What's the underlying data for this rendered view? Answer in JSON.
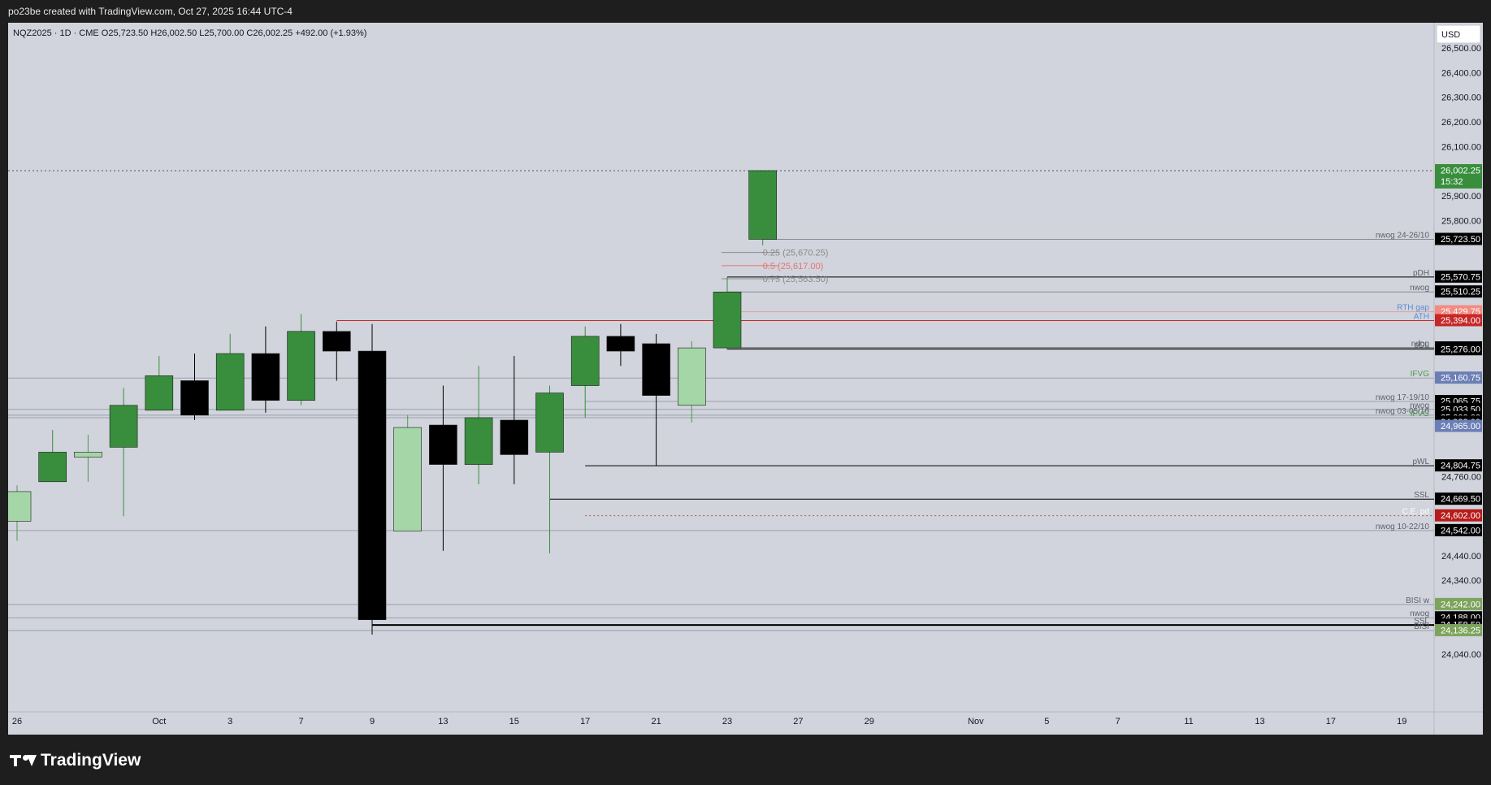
{
  "header": {
    "created_by": "po23be created with TradingView.com, Oct 27, 2025 16:44 UTC-4"
  },
  "chart_data": {
    "type": "candlestick",
    "symbol_info": "NQZ2025 · 1D · CME  O25,723.50  H26,002.50  L25,700.00  C26,002.25  +492.00 (+1.93%)",
    "currency_label": "USD",
    "y_ticks": [
      {
        "value": 26500,
        "label": "26,500.00"
      },
      {
        "value": 26400,
        "label": "26,400.00"
      },
      {
        "value": 26300,
        "label": "26,300.00"
      },
      {
        "value": 26200,
        "label": "26,200.00"
      },
      {
        "value": 26100,
        "label": "26,100.00"
      },
      {
        "value": 25900,
        "label": "25,900.00"
      },
      {
        "value": 25800,
        "label": "25,800.00"
      },
      {
        "value": 24760,
        "label": "24,760.00"
      },
      {
        "value": 24440,
        "label": "24,440.00"
      },
      {
        "value": 24340,
        "label": "24,340.00"
      },
      {
        "value": 24040,
        "label": "24,040.00"
      }
    ],
    "x_ticks": [
      {
        "index": 0,
        "label": "26"
      },
      {
        "index": 4,
        "label": "Oct"
      },
      {
        "index": 6,
        "label": "3"
      },
      {
        "index": 8,
        "label": "7"
      },
      {
        "index": 10,
        "label": "9"
      },
      {
        "index": 12,
        "label": "13"
      },
      {
        "index": 14,
        "label": "15"
      },
      {
        "index": 16,
        "label": "17"
      },
      {
        "index": 18,
        "label": "21"
      },
      {
        "index": 20,
        "label": "23"
      },
      {
        "index": 22,
        "label": "27"
      },
      {
        "index": 24,
        "label": "29"
      },
      {
        "index": 27,
        "label": "Nov"
      },
      {
        "index": 29,
        "label": "5"
      },
      {
        "index": 31,
        "label": "7"
      },
      {
        "index": 33,
        "label": "11"
      },
      {
        "index": 35,
        "label": "13"
      },
      {
        "index": 37,
        "label": "17"
      },
      {
        "index": 39,
        "label": "19"
      }
    ],
    "candles": [
      {
        "index": 0,
        "open": 24580,
        "high": 24725,
        "low": 24500,
        "close": 24700,
        "color": "#a5d6a7"
      },
      {
        "index": 1,
        "open": 24740,
        "high": 24950,
        "low": 24740,
        "close": 24860,
        "color": "#388e3c"
      },
      {
        "index": 2,
        "open": 24840,
        "high": 24930,
        "low": 24740,
        "close": 24860,
        "color": "#a5d6a7"
      },
      {
        "index": 3,
        "open": 24880,
        "high": 25120,
        "low": 24600,
        "close": 25050,
        "color": "#388e3c"
      },
      {
        "index": 4,
        "open": 25030,
        "high": 25250,
        "low": 25030,
        "close": 25170,
        "color": "#388e3c"
      },
      {
        "index": 5,
        "open": 25150,
        "high": 25260,
        "low": 24990,
        "close": 25010,
        "color": "#000000"
      },
      {
        "index": 6,
        "open": 25030,
        "high": 25340,
        "low": 25030,
        "close": 25260,
        "color": "#388e3c"
      },
      {
        "index": 7,
        "open": 25260,
        "high": 25370,
        "low": 25020,
        "close": 25070,
        "color": "#000000"
      },
      {
        "index": 8,
        "open": 25070,
        "high": 25420,
        "low": 25050,
        "close": 25350,
        "color": "#388e3c"
      },
      {
        "index": 9,
        "open": 25350,
        "high": 25390,
        "low": 25150,
        "close": 25270,
        "color": "#000000"
      },
      {
        "index": 10,
        "open": 25270,
        "high": 25380,
        "low": 24120,
        "close": 24180,
        "color": "#000000"
      },
      {
        "index": 11,
        "open": 24540,
        "high": 25010,
        "low": 24540,
        "close": 24960,
        "color": "#a5d6a7"
      },
      {
        "index": 12,
        "open": 24970,
        "high": 25130,
        "low": 24460,
        "close": 24810,
        "color": "#000000"
      },
      {
        "index": 13,
        "open": 24810,
        "high": 25210,
        "low": 24730,
        "close": 25000,
        "color": "#388e3c"
      },
      {
        "index": 14,
        "open": 24990,
        "high": 25250,
        "low": 24730,
        "close": 24850,
        "color": "#000000"
      },
      {
        "index": 15,
        "open": 24860,
        "high": 25130,
        "low": 24450,
        "close": 25100,
        "color": "#388e3c"
      },
      {
        "index": 16,
        "open": 25130,
        "high": 25370,
        "low": 25000,
        "close": 25330,
        "color": "#388e3c"
      },
      {
        "index": 17,
        "open": 25330,
        "high": 25380,
        "low": 25210,
        "close": 25270,
        "color": "#000000"
      },
      {
        "index": 18,
        "open": 25300,
        "high": 25340,
        "low": 24805,
        "close": 25090,
        "color": "#000000"
      },
      {
        "index": 19,
        "open": 25050,
        "high": 25310,
        "low": 24980,
        "close": 25283,
        "color": "#a5d6a7"
      },
      {
        "index": 20,
        "open": 25283,
        "high": 25570,
        "low": 25275,
        "close": 25510,
        "color": "#388e3c"
      },
      {
        "index": 21,
        "open": 25723.5,
        "high": 26002.5,
        "low": 25700,
        "close": 26002.25,
        "color": "#388e3c"
      }
    ],
    "levels": [
      {
        "value": 26002.25,
        "label": "",
        "tag": "26,002.25",
        "tag2": "15:32",
        "tag_bg": "#388e3c",
        "tag_fg": "#ffffff",
        "line": "#555555",
        "dash": "2,3",
        "from": 0
      },
      {
        "value": 25723.5,
        "label": "nwog 24-26/10",
        "tag": "25,723.50",
        "tag_bg": "#000000",
        "tag_fg": "#ffffff",
        "line": "#8a8a8a",
        "from": 21
      },
      {
        "value": 25570.75,
        "label": "pDH",
        "tag": "25,570.75",
        "tag_bg": "#000000",
        "tag_fg": "#ffffff",
        "line": "#000000",
        "from": 20
      },
      {
        "value": 25510.25,
        "label": "nwog",
        "tag": "25,510.25",
        "tag_bg": "#000000",
        "tag_fg": "#ffffff",
        "line": "#8a8a8a",
        "from": 20
      },
      {
        "value": 25429.75,
        "label": "RTH gap",
        "tag": "25,429.75",
        "tag_bg": "#f28b82",
        "tag_fg": "#ffffff",
        "line": "#e0a0a0",
        "from": 20,
        "label_color": "#5b8bd8"
      },
      {
        "value": 25394,
        "label": "ATH",
        "tag": "25,394.00",
        "tag_bg": "#c62828",
        "tag_fg": "#ffffff",
        "line": "#c62828",
        "from": 9,
        "label_color": "#5b8bd8"
      },
      {
        "value": 25283.25,
        "label": "ndog",
        "tag": "25,283.25",
        "tag_bg": "#000000",
        "tag_fg": "#ffffff",
        "line": "#444444",
        "from": 20
      },
      {
        "value": 25278,
        "label": "pDL",
        "tag": "25,278.00",
        "tag_bg": "#000000",
        "tag_fg": "#ffffff",
        "line": "#000000",
        "from": 20
      },
      {
        "value": 25276,
        "label": "",
        "tag": "25,276.00",
        "tag_bg": "#000000",
        "tag_fg": "#ffffff",
        "line": "",
        "from": 20
      },
      {
        "value": 25160.75,
        "label": "IFVG",
        "tag": "25,160.75",
        "tag_bg": "#6b7fb5",
        "tag_fg": "#ffffff",
        "line": "#9aa0ab",
        "from": 0,
        "label_color": "#4f9a4f"
      },
      {
        "value": 25065.75,
        "label": "nwog 17-19/10",
        "tag": "25,065.75",
        "tag_bg": "#000000",
        "tag_fg": "#ffffff",
        "line": "#9aa0ab",
        "from": 16
      },
      {
        "value": 25033.5,
        "label": "nwog",
        "tag": "25,033.50",
        "tag_bg": "#000000",
        "tag_fg": "#ffffff",
        "line": "#9aa0ab",
        "from": 0
      },
      {
        "value": 25010,
        "label": "nwog 03-05/10",
        "tag": "",
        "line": "#9aa0ab",
        "from": 0
      },
      {
        "value": 25000,
        "label": "IFVG",
        "tag": "25,000.00",
        "tag_bg": "#000000",
        "tag_fg": "#ffffff",
        "line": "#9aa0ab",
        "from": 0,
        "label_color": "#4f9a4f"
      },
      {
        "value": 24982,
        "label": "",
        "tag": "24,982.00",
        "tag_bg": "#000000",
        "tag_fg": "#ffffff",
        "line": "",
        "from": 0
      },
      {
        "value": 24965,
        "label": "",
        "tag": "24,965.00",
        "tag_bg": "#6b7fb5",
        "tag_fg": "#ffffff",
        "line": "",
        "from": 0
      },
      {
        "value": 24804.75,
        "label": "pWL",
        "tag": "24,804.75",
        "tag_bg": "#000000",
        "tag_fg": "#ffffff",
        "line": "#000000",
        "from": 16
      },
      {
        "value": 24669.5,
        "label": "SSL",
        "tag": "24,669.50",
        "tag_bg": "#000000",
        "tag_fg": "#ffffff",
        "line": "#000000",
        "from": 15
      },
      {
        "value": 24602,
        "label": "C.E. pd",
        "tag": "24,602.00",
        "tag_bg": "#b71c1c",
        "tag_fg": "#ffffff",
        "line": "#b05050",
        "dash": "2,3",
        "from": 16,
        "label_color": "#ffffff"
      },
      {
        "value": 24542,
        "label": "nwog 10-22/10",
        "tag": "24,542.00",
        "tag_bg": "#000000",
        "tag_fg": "#ffffff",
        "line": "#9aa0ab",
        "from": 0
      },
      {
        "value": 24242,
        "label": "BISI w",
        "tag": "24,242.00",
        "tag_bg": "#7da35c",
        "tag_fg": "#ffffff",
        "line": "#9aa0ab",
        "from": 0
      },
      {
        "value": 24188,
        "label": "nwog",
        "tag": "24,188.00",
        "tag_bg": "#000000",
        "tag_fg": "#ffffff",
        "line": "#9aa0ab",
        "from": 0
      },
      {
        "value": 24158.5,
        "label": "SSL",
        "tag": "24,158.50",
        "tag_bg": "#000000",
        "tag_fg": "#ffffff",
        "line": "#000000",
        "from": 10,
        "thick": true
      },
      {
        "value": 24136.25,
        "label": "BISI",
        "tag": "24,136.25",
        "tag_bg": "#7da35c",
        "tag_fg": "#ffffff",
        "line": "#9aa0ab",
        "from": 0
      }
    ],
    "fib": [
      {
        "value": 25670.25,
        "label": "0.25 (25,670.25)",
        "color": "#8a8a8a"
      },
      {
        "value": 25617,
        "label": "0.5 (25,617.00)",
        "color": "#e57373"
      },
      {
        "value": 25563.5,
        "label": "0.75 (25,563.50)",
        "color": "#8a8a8a"
      }
    ]
  },
  "footer": {
    "brand": "TradingView"
  }
}
